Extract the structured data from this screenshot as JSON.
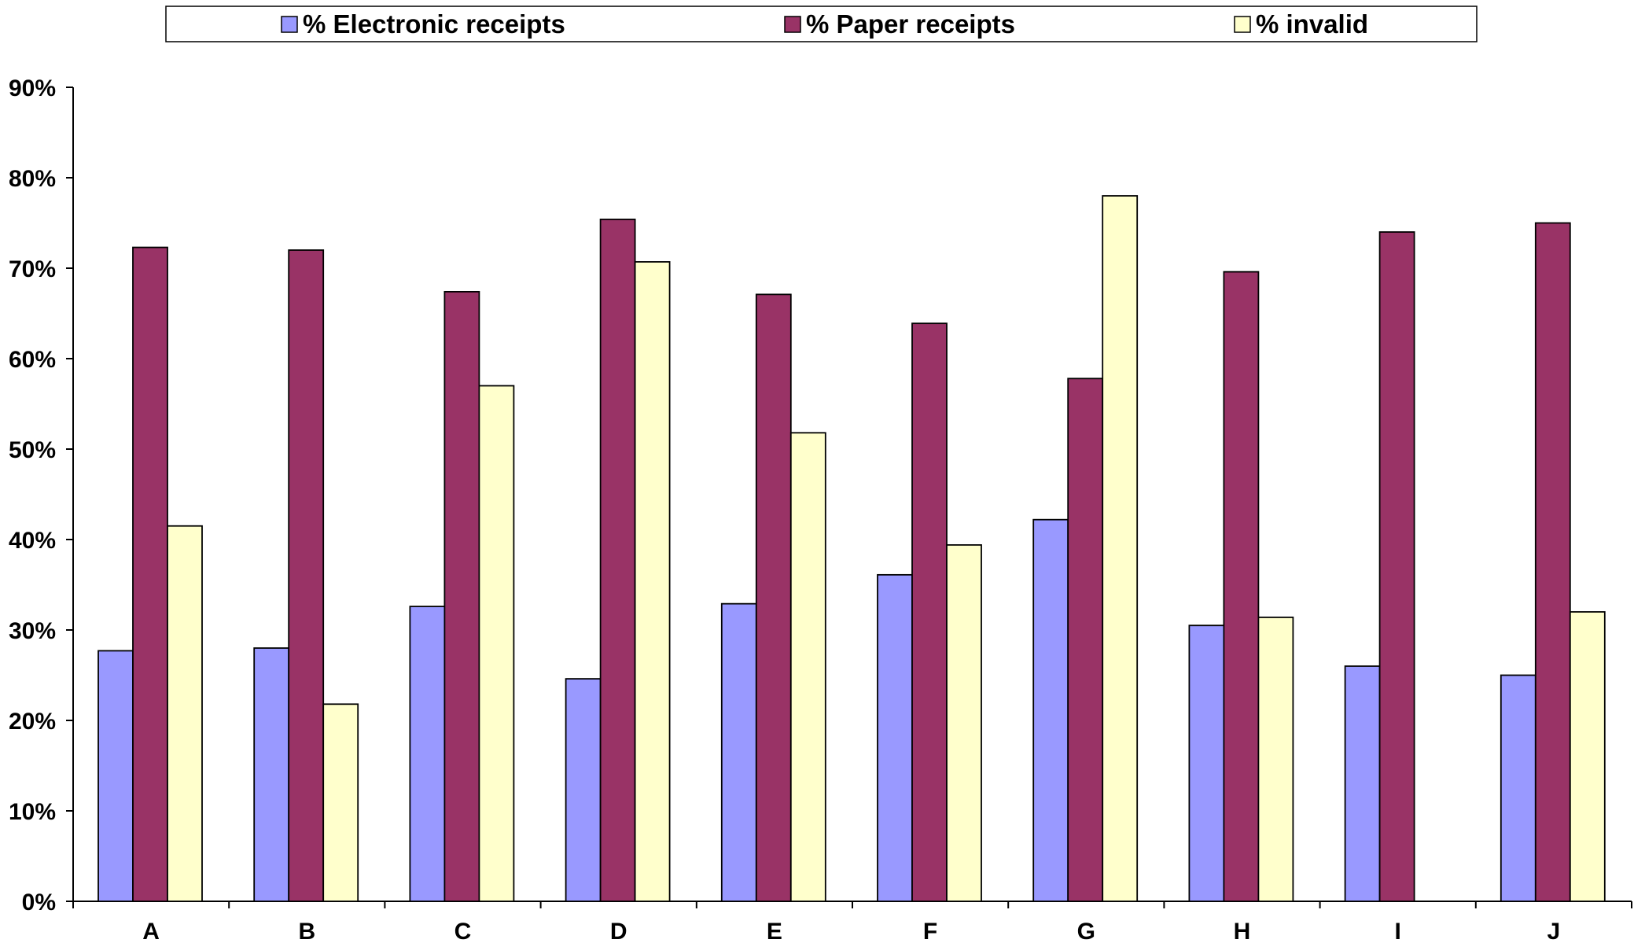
{
  "chart_data": {
    "type": "bar",
    "categories": [
      "A",
      "B",
      "C",
      "D",
      "E",
      "F",
      "G",
      "H",
      "I",
      "J"
    ],
    "series": [
      {
        "name": "% Electronic receipts",
        "color": "#9999ff",
        "values": [
          27.7,
          28.0,
          32.6,
          24.6,
          32.9,
          36.1,
          42.2,
          30.5,
          26.0,
          25.0
        ]
      },
      {
        "name": "% Paper receipts",
        "color": "#993366",
        "values": [
          72.3,
          72.0,
          67.4,
          75.4,
          67.1,
          63.9,
          57.8,
          69.6,
          74.0,
          75.0
        ]
      },
      {
        "name": "% invalid",
        "color": "#ffffcc",
        "values": [
          41.5,
          21.8,
          57.0,
          70.7,
          51.8,
          39.4,
          78.0,
          31.4,
          null,
          32.0
        ]
      }
    ],
    "yticks": [
      "0%",
      "10%",
      "20%",
      "30%",
      "40%",
      "50%",
      "60%",
      "70%",
      "80%",
      "90%"
    ],
    "ylim": [
      0,
      90
    ],
    "title": "",
    "xlabel": "",
    "ylabel": "",
    "legend_position": "top",
    "grid": false
  }
}
